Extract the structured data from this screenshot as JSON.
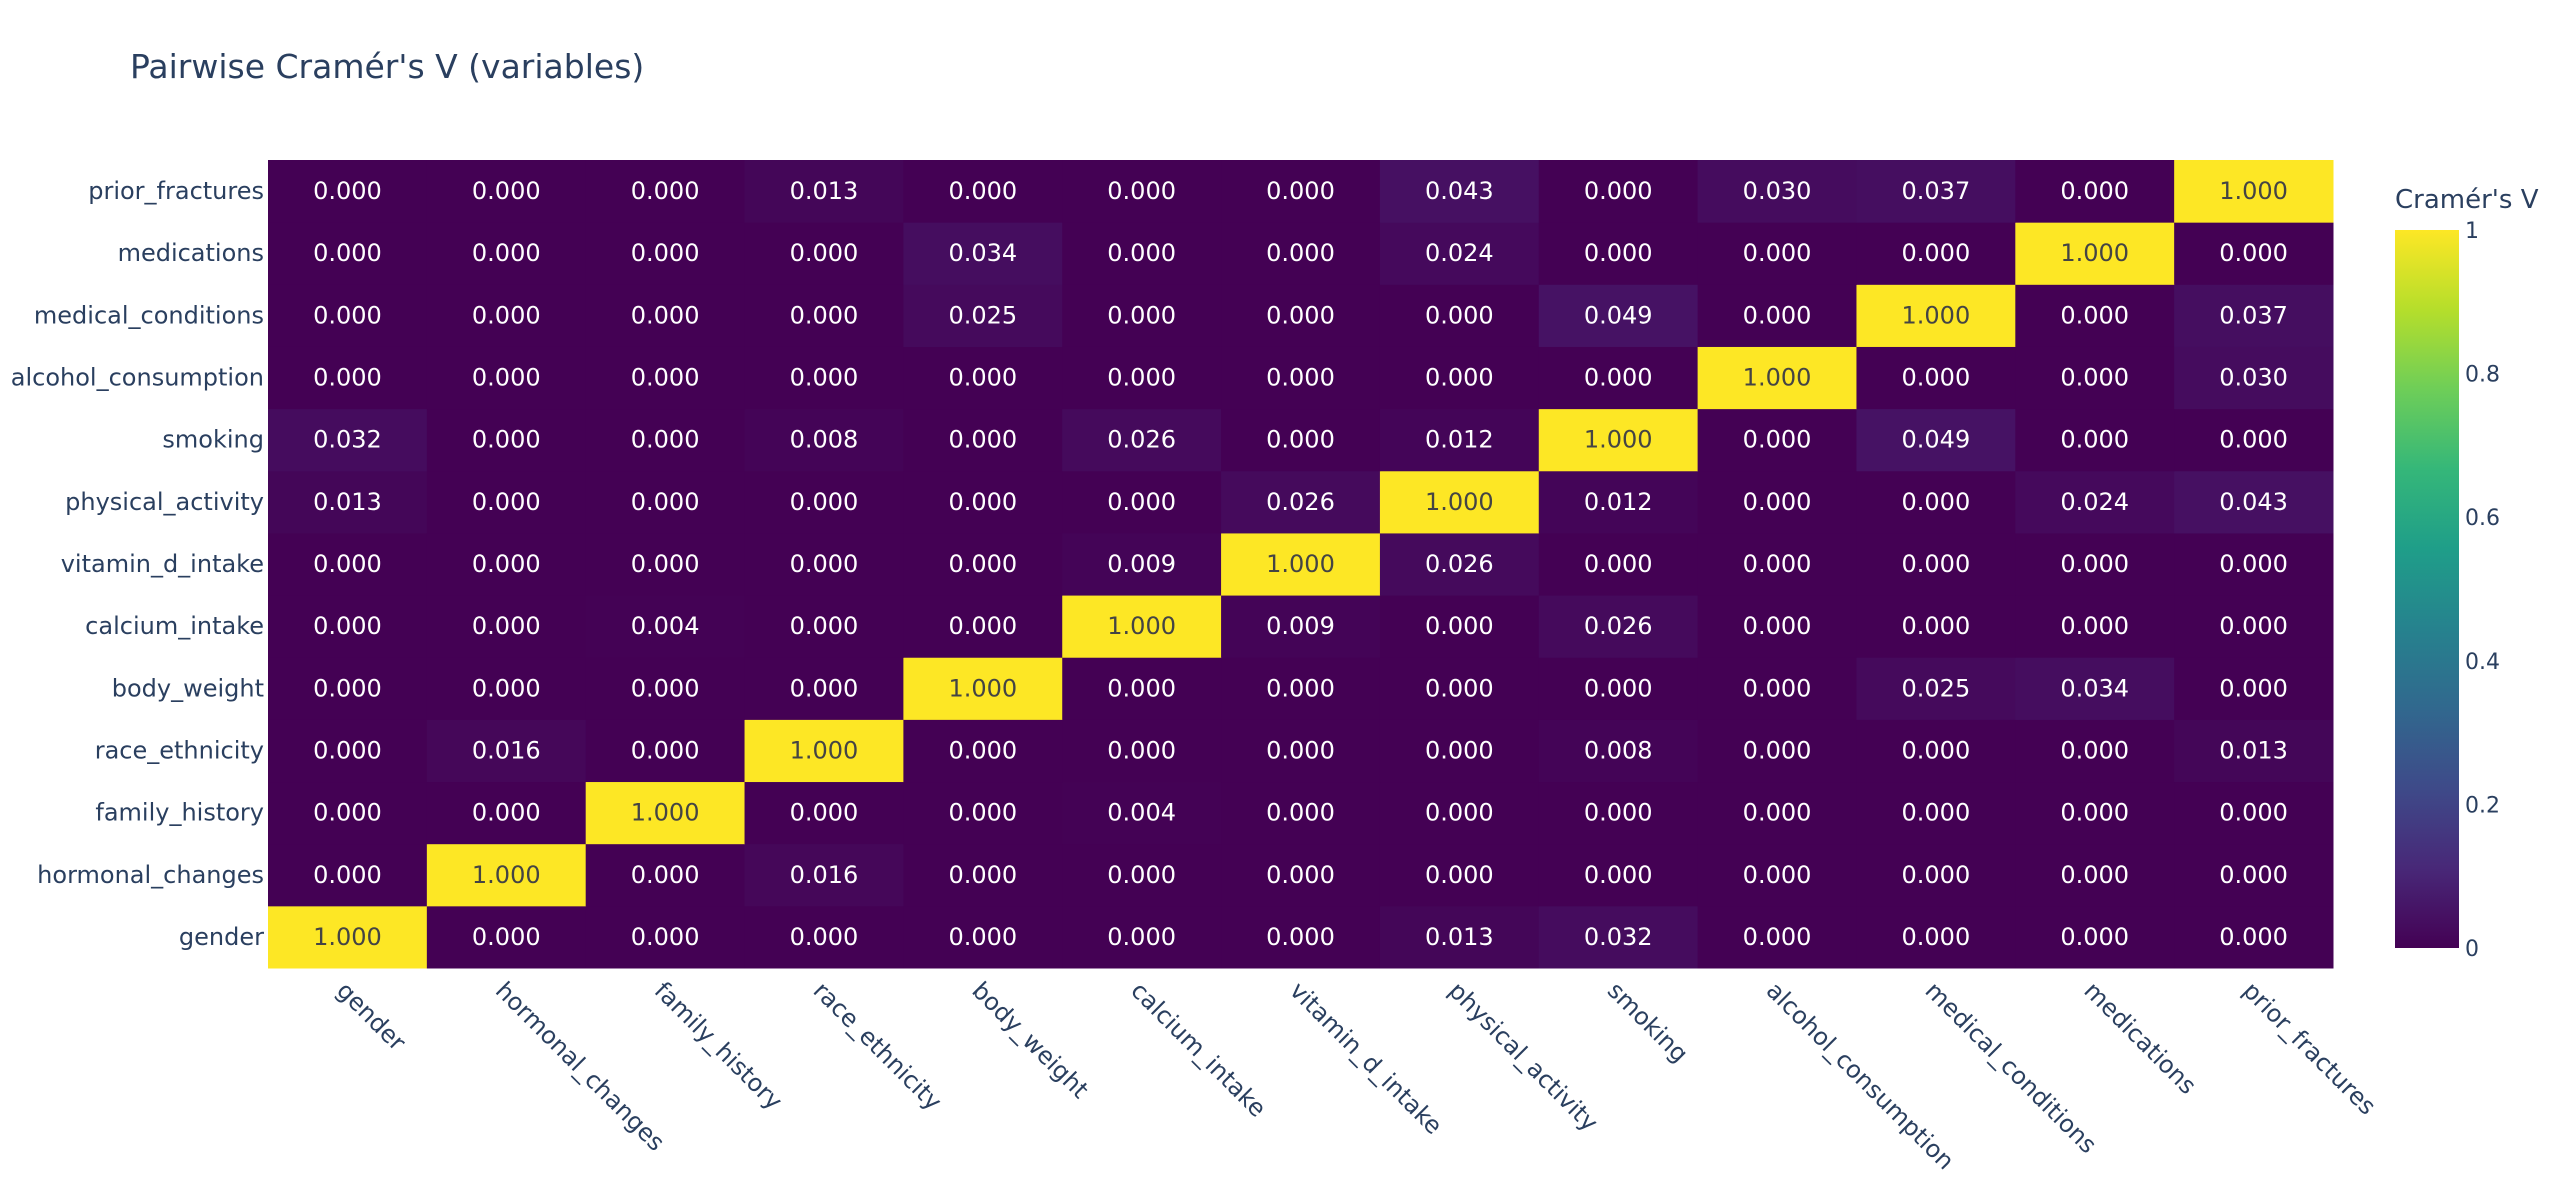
{
  "chart_data": {
    "type": "heatmap",
    "title": "Pairwise Cramér's V (variables)",
    "variables": [
      "gender",
      "hormonal_changes",
      "family_history",
      "race_ethnicity",
      "body_weight",
      "calcium_intake",
      "vitamin_d_intake",
      "physical_activity",
      "smoking",
      "alcohol_consumption",
      "medical_conditions",
      "medications",
      "prior_fractures"
    ],
    "x": [
      "gender",
      "hormonal_changes",
      "family_history",
      "race_ethnicity",
      "body_weight",
      "calcium_intake",
      "vitamin_d_intake",
      "physical_activity",
      "smoking",
      "alcohol_consumption",
      "medical_conditions",
      "medications",
      "prior_fractures"
    ],
    "y": [
      "gender",
      "hormonal_changes",
      "family_history",
      "race_ethnicity",
      "body_weight",
      "calcium_intake",
      "vitamin_d_intake",
      "physical_activity",
      "smoking",
      "alcohol_consumption",
      "medical_conditions",
      "medications",
      "prior_fractures"
    ],
    "z": [
      [
        1.0,
        0.0,
        0.0,
        0.0,
        0.0,
        0.0,
        0.0,
        0.013,
        0.032,
        0.0,
        0.0,
        0.0,
        0.0
      ],
      [
        0.0,
        1.0,
        0.0,
        0.016,
        0.0,
        0.0,
        0.0,
        0.0,
        0.0,
        0.0,
        0.0,
        0.0,
        0.0
      ],
      [
        0.0,
        0.0,
        1.0,
        0.0,
        0.0,
        0.004,
        0.0,
        0.0,
        0.0,
        0.0,
        0.0,
        0.0,
        0.0
      ],
      [
        0.0,
        0.016,
        0.0,
        1.0,
        0.0,
        0.0,
        0.0,
        0.0,
        0.008,
        0.0,
        0.0,
        0.0,
        0.013
      ],
      [
        0.0,
        0.0,
        0.0,
        0.0,
        1.0,
        0.0,
        0.0,
        0.0,
        0.0,
        0.0,
        0.025,
        0.034,
        0.0
      ],
      [
        0.0,
        0.0,
        0.004,
        0.0,
        0.0,
        1.0,
        0.009,
        0.0,
        0.026,
        0.0,
        0.0,
        0.0,
        0.0
      ],
      [
        0.0,
        0.0,
        0.0,
        0.0,
        0.0,
        0.009,
        1.0,
        0.026,
        0.0,
        0.0,
        0.0,
        0.0,
        0.0
      ],
      [
        0.013,
        0.0,
        0.0,
        0.0,
        0.0,
        0.0,
        0.026,
        1.0,
        0.012,
        0.0,
        0.0,
        0.024,
        0.043
      ],
      [
        0.032,
        0.0,
        0.0,
        0.008,
        0.0,
        0.026,
        0.0,
        0.012,
        1.0,
        0.0,
        0.049,
        0.0,
        0.0
      ],
      [
        0.0,
        0.0,
        0.0,
        0.0,
        0.0,
        0.0,
        0.0,
        0.0,
        0.0,
        1.0,
        0.0,
        0.0,
        0.03
      ],
      [
        0.0,
        0.0,
        0.0,
        0.0,
        0.025,
        0.0,
        0.0,
        0.0,
        0.049,
        0.0,
        1.0,
        0.0,
        0.037
      ],
      [
        0.0,
        0.0,
        0.0,
        0.0,
        0.034,
        0.0,
        0.0,
        0.024,
        0.0,
        0.0,
        0.0,
        1.0,
        0.0
      ],
      [
        0.0,
        0.0,
        0.0,
        0.013,
        0.0,
        0.0,
        0.0,
        0.043,
        0.0,
        0.03,
        0.037,
        0.0,
        1.0
      ]
    ],
    "zmin": 0,
    "zmax": 1,
    "value_format": "0.000",
    "colorscale": "viridis",
    "colorbar": {
      "title": "Cramér's V",
      "ticks": [
        0,
        0.2,
        0.4,
        0.6,
        0.8,
        1
      ],
      "tick_labels": [
        "0",
        "0.2",
        "0.4",
        "0.6",
        "0.8",
        "1"
      ]
    },
    "colors": {
      "low": "#440154",
      "high": "#fde725",
      "text_on_dark": "#ffffff",
      "text_on_light": "#444444",
      "axis_text": "#2a3f5f"
    }
  }
}
